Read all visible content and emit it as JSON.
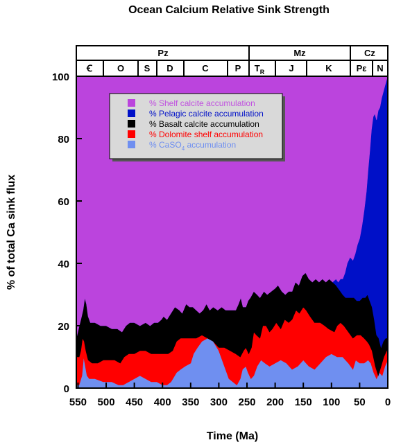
{
  "chart_data": {
    "type": "area",
    "title": "Ocean Calcium Relative Sink Strength",
    "xlabel": "Time (Ma)",
    "ylabel": "% of total Ca sink flux",
    "xlim": [
      553,
      0
    ],
    "ylim": [
      0,
      100
    ],
    "xticks": [
      "550",
      "500",
      "450",
      "400",
      "350",
      "300",
      "250",
      "200",
      "150",
      "100",
      "50",
      "0"
    ],
    "yticks": [
      "0",
      "20",
      "40",
      "60",
      "80",
      "100"
    ],
    "stacking": "cumulative",
    "series": [
      {
        "name": "% CaSO4 accumulation",
        "name_main": "% CaSO",
        "name_sub": "4",
        "name_tail": " accumulation",
        "color": "#6f8ff0"
      },
      {
        "name": "% Dolomite shelf accumulation",
        "color": "#ff0000"
      },
      {
        "name": "% Basalt calcite accumulation",
        "color": "#000000"
      },
      {
        "name": "% Pelagic calcite accumulation",
        "color": "#0010c8"
      },
      {
        "name": "% Shelf calcite accumulation",
        "color": "#bb44dd"
      }
    ],
    "legend_order": [
      4,
      3,
      2,
      1,
      0
    ],
    "legend_position": "top-left",
    "boundaries": {
      "caso4_top": [
        [
          553,
          1
        ],
        [
          548,
          1
        ],
        [
          543,
          4
        ],
        [
          540,
          10
        ],
        [
          537,
          7
        ],
        [
          534,
          4
        ],
        [
          530,
          3
        ],
        [
          520,
          3
        ],
        [
          505,
          2
        ],
        [
          490,
          2
        ],
        [
          478,
          1
        ],
        [
          470,
          1
        ],
        [
          460,
          2
        ],
        [
          450,
          3
        ],
        [
          440,
          4
        ],
        [
          430,
          3
        ],
        [
          420,
          2
        ],
        [
          410,
          2
        ],
        [
          400,
          1
        ],
        [
          392,
          1
        ],
        [
          385,
          2
        ],
        [
          375,
          5
        ],
        [
          368,
          6
        ],
        [
          360,
          7
        ],
        [
          350,
          8
        ],
        [
          345,
          11
        ],
        [
          338,
          13
        ],
        [
          330,
          15
        ],
        [
          320,
          16
        ],
        [
          310,
          15
        ],
        [
          300,
          12
        ],
        [
          290,
          7
        ],
        [
          282,
          3
        ],
        [
          275,
          2
        ],
        [
          268,
          1
        ],
        [
          262,
          3
        ],
        [
          258,
          6
        ],
        [
          252,
          7
        ],
        [
          248,
          5
        ],
        [
          243,
          3
        ],
        [
          238,
          4
        ],
        [
          232,
          7
        ],
        [
          225,
          9
        ],
        [
          218,
          8
        ],
        [
          210,
          7
        ],
        [
          200,
          8
        ],
        [
          190,
          9
        ],
        [
          180,
          8
        ],
        [
          170,
          6
        ],
        [
          160,
          7
        ],
        [
          150,
          9
        ],
        [
          140,
          7
        ],
        [
          130,
          6
        ],
        [
          120,
          8
        ],
        [
          110,
          10
        ],
        [
          100,
          11
        ],
        [
          90,
          10
        ],
        [
          80,
          10
        ],
        [
          70,
          8
        ],
        [
          62,
          6
        ],
        [
          57,
          9
        ],
        [
          50,
          8
        ],
        [
          42,
          8
        ],
        [
          35,
          9
        ],
        [
          30,
          8
        ],
        [
          25,
          5
        ],
        [
          20,
          3
        ],
        [
          15,
          5
        ],
        [
          10,
          4
        ],
        [
          5,
          7
        ],
        [
          0,
          9
        ]
      ],
      "dolomite_top": [
        [
          553,
          10
        ],
        [
          548,
          10
        ],
        [
          545,
          12
        ],
        [
          542,
          16
        ],
        [
          539,
          15
        ],
        [
          536,
          12
        ],
        [
          532,
          9
        ],
        [
          525,
          8
        ],
        [
          515,
          8
        ],
        [
          505,
          9
        ],
        [
          495,
          9
        ],
        [
          485,
          9
        ],
        [
          475,
          8
        ],
        [
          468,
          10
        ],
        [
          460,
          11
        ],
        [
          450,
          11
        ],
        [
          440,
          12
        ],
        [
          430,
          12
        ],
        [
          420,
          11
        ],
        [
          410,
          11
        ],
        [
          400,
          11
        ],
        [
          390,
          11
        ],
        [
          382,
          12
        ],
        [
          375,
          15
        ],
        [
          368,
          16
        ],
        [
          360,
          16
        ],
        [
          350,
          16
        ],
        [
          340,
          16
        ],
        [
          330,
          17
        ],
        [
          320,
          16
        ],
        [
          310,
          15
        ],
        [
          300,
          13
        ],
        [
          290,
          13
        ],
        [
          280,
          12
        ],
        [
          270,
          11
        ],
        [
          262,
          10
        ],
        [
          256,
          12
        ],
        [
          252,
          13
        ],
        [
          247,
          11
        ],
        [
          242,
          13
        ],
        [
          238,
          18
        ],
        [
          233,
          17
        ],
        [
          227,
          16
        ],
        [
          222,
          20
        ],
        [
          216,
          20
        ],
        [
          210,
          18
        ],
        [
          205,
          19
        ],
        [
          198,
          21
        ],
        [
          190,
          19
        ],
        [
          183,
          22
        ],
        [
          176,
          21
        ],
        [
          170,
          22
        ],
        [
          163,
          25
        ],
        [
          157,
          24
        ],
        [
          150,
          26
        ],
        [
          145,
          25
        ],
        [
          138,
          23
        ],
        [
          130,
          21
        ],
        [
          120,
          21
        ],
        [
          112,
          20
        ],
        [
          105,
          19
        ],
        [
          95,
          18
        ],
        [
          90,
          20
        ],
        [
          84,
          21
        ],
        [
          78,
          20
        ],
        [
          70,
          18
        ],
        [
          62,
          16
        ],
        [
          55,
          17
        ],
        [
          48,
          17
        ],
        [
          42,
          16
        ],
        [
          37,
          15
        ],
        [
          33,
          14
        ],
        [
          28,
          12
        ],
        [
          22,
          7
        ],
        [
          17,
          4
        ],
        [
          12,
          7
        ],
        [
          7,
          10
        ],
        [
          2,
          12
        ],
        [
          0,
          12
        ]
      ],
      "basalt_top": [
        [
          553,
          16
        ],
        [
          549,
          19
        ],
        [
          545,
          22
        ],
        [
          541,
          25
        ],
        [
          538,
          29
        ],
        [
          535,
          27
        ],
        [
          532,
          23
        ],
        [
          528,
          21
        ],
        [
          520,
          21
        ],
        [
          510,
          20
        ],
        [
          500,
          20
        ],
        [
          490,
          19
        ],
        [
          480,
          19
        ],
        [
          472,
          18
        ],
        [
          465,
          20
        ],
        [
          458,
          21
        ],
        [
          450,
          21
        ],
        [
          440,
          20
        ],
        [
          430,
          21
        ],
        [
          422,
          20
        ],
        [
          415,
          21
        ],
        [
          408,
          21
        ],
        [
          402,
          22
        ],
        [
          398,
          23
        ],
        [
          392,
          22
        ],
        [
          385,
          24
        ],
        [
          378,
          26
        ],
        [
          370,
          25
        ],
        [
          365,
          24
        ],
        [
          358,
          27
        ],
        [
          352,
          26
        ],
        [
          346,
          26
        ],
        [
          340,
          25
        ],
        [
          334,
          24
        ],
        [
          328,
          25
        ],
        [
          322,
          27
        ],
        [
          316,
          25
        ],
        [
          310,
          26
        ],
        [
          302,
          25
        ],
        [
          295,
          26
        ],
        [
          288,
          25
        ],
        [
          282,
          25
        ],
        [
          276,
          25
        ],
        [
          270,
          25
        ],
        [
          265,
          27
        ],
        [
          261,
          29
        ],
        [
          257,
          26
        ],
        [
          252,
          26
        ],
        [
          248,
          28
        ],
        [
          244,
          29
        ],
        [
          238,
          31
        ],
        [
          232,
          30
        ],
        [
          227,
          29
        ],
        [
          220,
          31
        ],
        [
          214,
          30
        ],
        [
          207,
          31
        ],
        [
          200,
          32
        ],
        [
          195,
          33
        ],
        [
          188,
          31
        ],
        [
          182,
          30
        ],
        [
          176,
          31
        ],
        [
          170,
          31
        ],
        [
          164,
          34
        ],
        [
          158,
          33
        ],
        [
          152,
          36
        ],
        [
          146,
          37
        ],
        [
          140,
          35
        ],
        [
          134,
          34
        ],
        [
          128,
          35
        ],
        [
          122,
          34
        ],
        [
          116,
          35
        ],
        [
          110,
          34
        ],
        [
          104,
          35
        ],
        [
          98,
          34
        ],
        [
          92,
          33
        ],
        [
          88,
          32
        ],
        [
          84,
          31
        ],
        [
          80,
          30
        ],
        [
          75,
          29
        ],
        [
          70,
          29
        ],
        [
          65,
          29
        ],
        [
          60,
          29
        ],
        [
          55,
          28
        ],
        [
          50,
          28
        ],
        [
          45,
          29
        ],
        [
          40,
          29
        ],
        [
          36,
          30
        ],
        [
          32,
          28
        ],
        [
          28,
          26
        ],
        [
          24,
          22
        ],
        [
          20,
          17
        ],
        [
          16,
          16
        ],
        [
          12,
          13
        ],
        [
          8,
          15
        ],
        [
          4,
          16
        ],
        [
          0,
          16
        ]
      ],
      "pelagic_top": [
        [
          553,
          16
        ],
        [
          549,
          19
        ],
        [
          545,
          22
        ],
        [
          541,
          25
        ],
        [
          538,
          29
        ],
        [
          535,
          27
        ],
        [
          532,
          23
        ],
        [
          528,
          21
        ],
        [
          520,
          21
        ],
        [
          510,
          20
        ],
        [
          500,
          20
        ],
        [
          490,
          19
        ],
        [
          480,
          19
        ],
        [
          472,
          18
        ],
        [
          465,
          20
        ],
        [
          458,
          21
        ],
        [
          450,
          21
        ],
        [
          440,
          20
        ],
        [
          430,
          21
        ],
        [
          422,
          20
        ],
        [
          415,
          21
        ],
        [
          408,
          21
        ],
        [
          402,
          22
        ],
        [
          398,
          23
        ],
        [
          392,
          22
        ],
        [
          385,
          24
        ],
        [
          378,
          26
        ],
        [
          370,
          25
        ],
        [
          365,
          24
        ],
        [
          358,
          27
        ],
        [
          352,
          26
        ],
        [
          346,
          26
        ],
        [
          340,
          25
        ],
        [
          334,
          24
        ],
        [
          328,
          25
        ],
        [
          322,
          27
        ],
        [
          316,
          25
        ],
        [
          310,
          26
        ],
        [
          302,
          25
        ],
        [
          295,
          26
        ],
        [
          288,
          25
        ],
        [
          282,
          25
        ],
        [
          276,
          25
        ],
        [
          270,
          25
        ],
        [
          265,
          27
        ],
        [
          261,
          29
        ],
        [
          257,
          26
        ],
        [
          252,
          26
        ],
        [
          248,
          28
        ],
        [
          244,
          29
        ],
        [
          238,
          31
        ],
        [
          232,
          30
        ],
        [
          227,
          29
        ],
        [
          220,
          31
        ],
        [
          214,
          30
        ],
        [
          207,
          31
        ],
        [
          200,
          32
        ],
        [
          195,
          33
        ],
        [
          188,
          31
        ],
        [
          182,
          30
        ],
        [
          176,
          31
        ],
        [
          170,
          31
        ],
        [
          164,
          34
        ],
        [
          158,
          33
        ],
        [
          152,
          36
        ],
        [
          146,
          37
        ],
        [
          140,
          35
        ],
        [
          134,
          34
        ],
        [
          128,
          35
        ],
        [
          122,
          34
        ],
        [
          116,
          35
        ],
        [
          110,
          34
        ],
        [
          104,
          35
        ],
        [
          98,
          34
        ],
        [
          92,
          35
        ],
        [
          88,
          34
        ],
        [
          84,
          35
        ],
        [
          80,
          35
        ],
        [
          76,
          37
        ],
        [
          72,
          40
        ],
        [
          67,
          42
        ],
        [
          62,
          41
        ],
        [
          58,
          43
        ],
        [
          54,
          46
        ],
        [
          50,
          48
        ],
        [
          46,
          52
        ],
        [
          42,
          57
        ],
        [
          38,
          63
        ],
        [
          35,
          70
        ],
        [
          32,
          76
        ],
        [
          29,
          83
        ],
        [
          26,
          87
        ],
        [
          23,
          88
        ],
        [
          20,
          86
        ],
        [
          17,
          89
        ],
        [
          14,
          90
        ],
        [
          11,
          93
        ],
        [
          8,
          95
        ],
        [
          5,
          97
        ],
        [
          2,
          99
        ],
        [
          0,
          100
        ]
      ]
    }
  },
  "period_bar": {
    "eras": [
      "Pz",
      "Mz",
      "Cz"
    ],
    "periods": [
      "Ꞓ",
      "O",
      "S",
      "D",
      "C",
      "P",
      "T",
      "J",
      "K",
      "Pε",
      "N"
    ],
    "triassic_subscript": "R"
  }
}
